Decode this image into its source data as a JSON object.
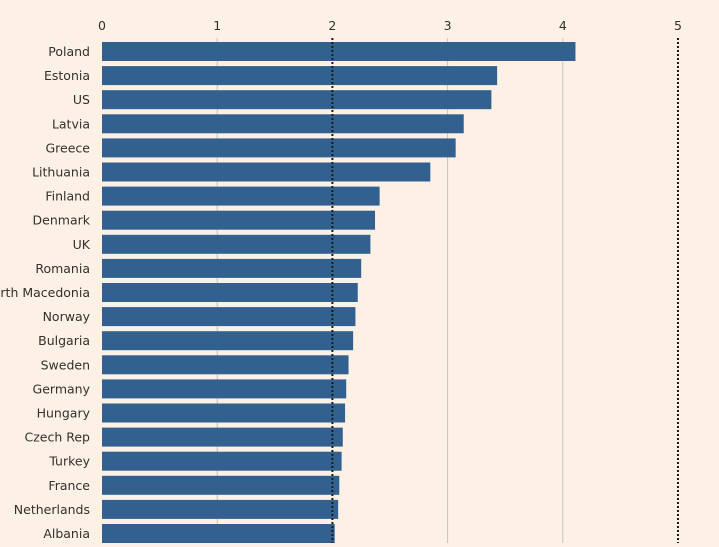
{
  "chart_data": {
    "type": "bar",
    "orientation": "horizontal",
    "categories": [
      "Poland",
      "Estonia",
      "US",
      "Latvia",
      "Greece",
      "Lithuania",
      "Finland",
      "Denmark",
      "UK",
      "Romania",
      "North Macedonia",
      "Norway",
      "Bulgaria",
      "Sweden",
      "Germany",
      "Hungary",
      "Czech Rep",
      "Turkey",
      "France",
      "Netherlands",
      "Albania"
    ],
    "values": [
      4.11,
      3.43,
      3.38,
      3.14,
      3.07,
      2.85,
      2.41,
      2.37,
      2.33,
      2.25,
      2.22,
      2.2,
      2.18,
      2.14,
      2.12,
      2.11,
      2.09,
      2.08,
      2.06,
      2.05,
      2.02
    ],
    "xlim": [
      0,
      5
    ],
    "xticks": [
      "0",
      "1",
      "2",
      "3",
      "4",
      "5"
    ],
    "reference_lines": [
      2,
      5
    ],
    "grid": true,
    "title": "",
    "xlabel": "",
    "ylabel": "",
    "colors": {
      "bar": "#33618f",
      "background": "#fdf1e6",
      "grid": "#c9c2bb",
      "reference": "#1a1a1a"
    }
  }
}
